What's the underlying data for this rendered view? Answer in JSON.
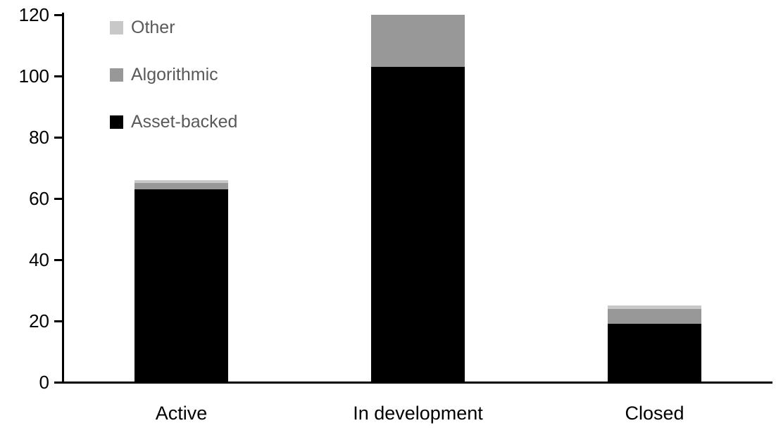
{
  "chart_data": {
    "type": "bar",
    "stacked": true,
    "title": "",
    "categories": [
      "Active",
      "In development",
      "Closed"
    ],
    "series": [
      {
        "name": "Asset-backed",
        "color": "#000000",
        "values": [
          63,
          103,
          19
        ]
      },
      {
        "name": "Algorithmic",
        "color": "#989898",
        "values": [
          2,
          17,
          5
        ]
      },
      {
        "name": "Other",
        "color": "#C8C8C8",
        "values": [
          1,
          0,
          1
        ]
      }
    ],
    "ylim": [
      0,
      120
    ],
    "ytick_step": 20,
    "yticks": [
      "0",
      "20",
      "40",
      "60",
      "80",
      "100",
      "120"
    ],
    "grid": false,
    "legend_position": "top-left",
    "axis_color": "#000000",
    "tick_label_color": "#000000",
    "legend_text_color": "#595959"
  },
  "legend": {
    "entries": [
      {
        "label": "Other",
        "color": "#C8C8C8"
      },
      {
        "label": "Algorithmic",
        "color": "#989898"
      },
      {
        "label": "Asset-backed",
        "color": "#000000"
      }
    ]
  }
}
